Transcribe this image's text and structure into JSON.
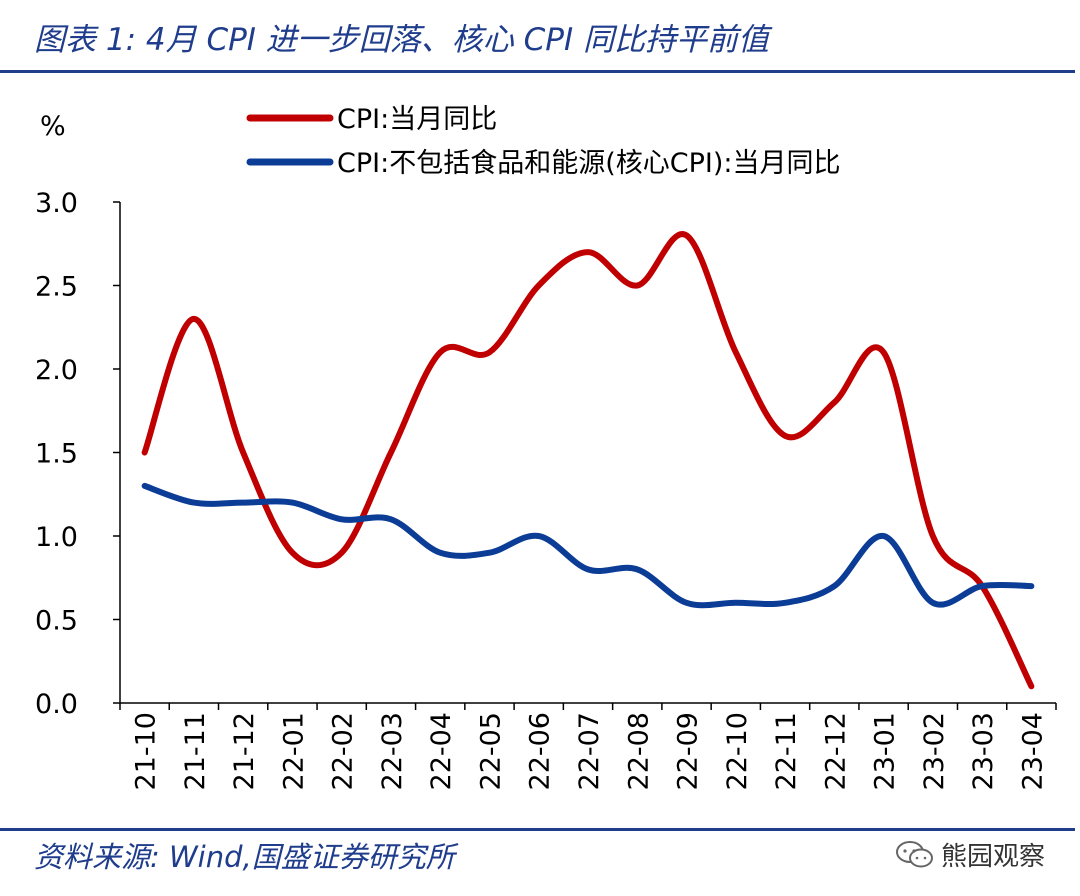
{
  "header": {
    "title": "图表 1:  4月 CPI 进一步回落、核心 CPI 同比持平前值"
  },
  "footer": {
    "source": "资料来源:  Wind,国盛证券研究所",
    "watermark": "熊园观察"
  },
  "chart_data": {
    "type": "line",
    "ylabel": "%",
    "ylim": [
      0,
      3
    ],
    "yticks": [
      "3.0",
      "2.5",
      "2.0",
      "1.5",
      "1.0",
      "0.5",
      "0.0"
    ],
    "ytick_values": [
      3.0,
      2.5,
      2.0,
      1.5,
      1.0,
      0.5,
      0.0
    ],
    "categories": [
      "21-10",
      "21-11",
      "21-12",
      "22-01",
      "22-02",
      "22-03",
      "22-04",
      "22-05",
      "22-06",
      "22-07",
      "22-08",
      "22-09",
      "22-10",
      "22-11",
      "22-12",
      "23-01",
      "23-02",
      "23-03",
      "23-04"
    ],
    "legend_position": "top",
    "grid": false,
    "series": [
      {
        "name": "CPI:当月同比",
        "color": "#c00000",
        "values": [
          1.5,
          2.3,
          1.5,
          0.9,
          0.9,
          1.5,
          2.1,
          2.1,
          2.5,
          2.7,
          2.5,
          2.8,
          2.1,
          1.6,
          1.8,
          2.1,
          1.0,
          0.7,
          0.1
        ]
      },
      {
        "name": "CPI:不包括食品和能源(核心CPI):当月同比",
        "color": "#0b3c96",
        "values": [
          1.3,
          1.2,
          1.2,
          1.2,
          1.1,
          1.1,
          0.9,
          0.9,
          1.0,
          0.8,
          0.8,
          0.6,
          0.6,
          0.6,
          0.7,
          1.0,
          0.6,
          0.7,
          0.7
        ]
      }
    ]
  }
}
